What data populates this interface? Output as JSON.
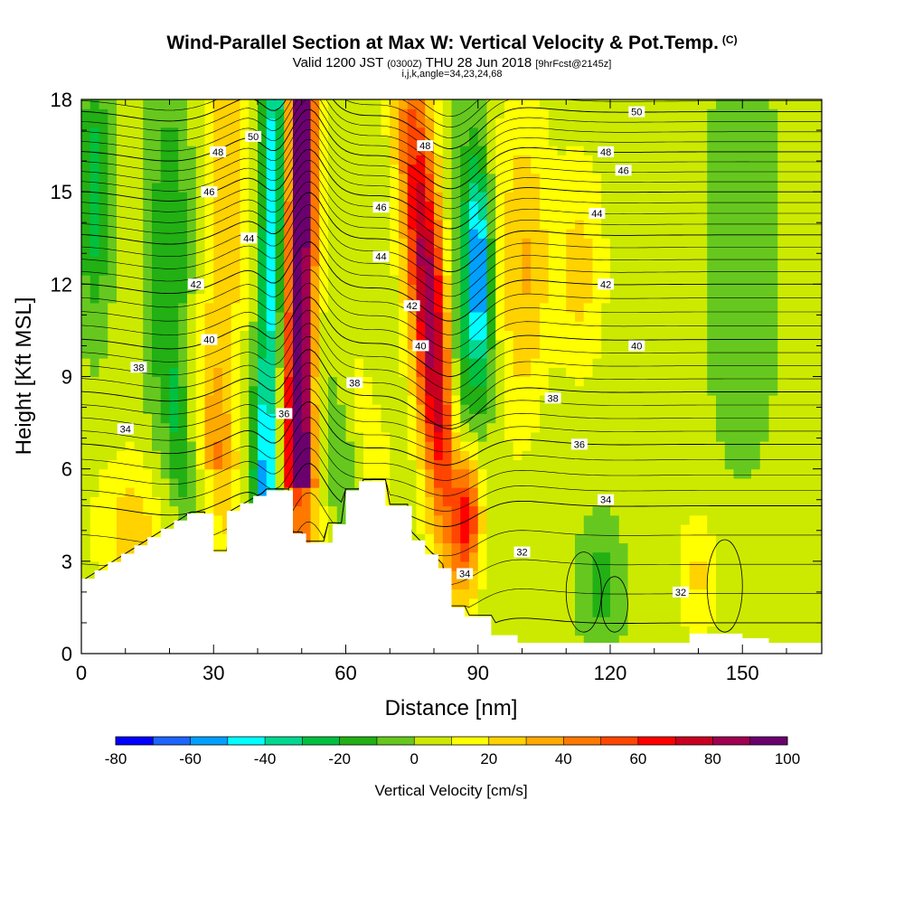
{
  "header": {
    "title": "Wind-Parallel Section at Max W: Vertical Velocity & Pot.Temp.",
    "copyright": "(C)",
    "valid_prefix": "Valid 1200 JST",
    "valid_utc": "(0300Z)",
    "valid_date": "THU 28 Jun 2018",
    "forecast": "[9hrFcst@2145z]",
    "indices": "i,j,k,angle=34,23,24,68"
  },
  "chart_data": {
    "type": "heatmap",
    "xlabel": "Distance [nm]",
    "ylabel": "Height [Kft MSL]",
    "xlim": [
      0,
      168
    ],
    "ylim": [
      0,
      18
    ],
    "x_ticks": [
      0,
      30,
      60,
      90,
      120,
      150
    ],
    "y_ticks": [
      0,
      3,
      6,
      9,
      12,
      15,
      18
    ],
    "colorbar": {
      "label": "Vertical Velocity [cm/s]",
      "levels": [
        -80,
        -70,
        -60,
        -50,
        -40,
        -30,
        -20,
        -10,
        0,
        10,
        20,
        30,
        40,
        50,
        60,
        70,
        80,
        90,
        100
      ],
      "tick_labels": [
        -80,
        -60,
        -40,
        -20,
        0,
        20,
        40,
        60,
        80,
        100
      ],
      "colors": [
        "#0000ff",
        "#1e64ff",
        "#00a0ff",
        "#00ffff",
        "#00d890",
        "#00c040",
        "#22b014",
        "#66c81e",
        "#ccea00",
        "#ffff00",
        "#ffd200",
        "#ffaa00",
        "#ff7800",
        "#ff4600",
        "#ff0000",
        "#c80020",
        "#a00050",
        "#6a006e"
      ]
    },
    "vertical_velocity_bands": [
      {
        "x_top": 49,
        "x_bottom": 50,
        "peak_cm_s": 100
      },
      {
        "x_top": 39,
        "x_bottom": 44,
        "peak_cm_s": -50
      },
      {
        "x_top": 76,
        "x_bottom": 88,
        "peak_cm_s": 80
      },
      {
        "x_top": 91,
        "x_bottom": 96,
        "peak_cm_s": -60
      },
      {
        "x_top": 101,
        "x_bottom": 108,
        "peak_cm_s": 30
      }
    ],
    "theta_contours_label": [
      32,
      34,
      36,
      38,
      40,
      42,
      44,
      46,
      48,
      50
    ],
    "theta_contour_labels": [
      {
        "text": "50",
        "x": 39,
        "y": 16.8
      },
      {
        "text": "48",
        "x": 31,
        "y": 16.3
      },
      {
        "text": "46",
        "x": 29,
        "y": 15.0
      },
      {
        "text": "44",
        "x": 38,
        "y": 13.5
      },
      {
        "text": "42",
        "x": 26,
        "y": 12.0
      },
      {
        "text": "40",
        "x": 29,
        "y": 10.2
      },
      {
        "text": "38",
        "x": 13,
        "y": 9.3
      },
      {
        "text": "34",
        "x": 10,
        "y": 7.3
      },
      {
        "text": "36",
        "x": 46,
        "y": 7.8
      },
      {
        "text": "38",
        "x": 62,
        "y": 8.8
      },
      {
        "text": "48",
        "x": 78,
        "y": 16.5
      },
      {
        "text": "46",
        "x": 68,
        "y": 14.5
      },
      {
        "text": "44",
        "x": 68,
        "y": 12.9
      },
      {
        "text": "42",
        "x": 75,
        "y": 11.3
      },
      {
        "text": "40",
        "x": 77,
        "y": 10.0
      },
      {
        "text": "50",
        "x": 126,
        "y": 17.6
      },
      {
        "text": "48",
        "x": 119,
        "y": 16.3
      },
      {
        "text": "46",
        "x": 123,
        "y": 15.7
      },
      {
        "text": "44",
        "x": 117,
        "y": 14.3
      },
      {
        "text": "42",
        "x": 119,
        "y": 12.0
      },
      {
        "text": "40",
        "x": 126,
        "y": 10.0
      },
      {
        "text": "38",
        "x": 107,
        "y": 8.3
      },
      {
        "text": "36",
        "x": 113,
        "y": 6.8
      },
      {
        "text": "34",
        "x": 119,
        "y": 5.0
      },
      {
        "text": "32",
        "x": 100,
        "y": 3.3
      },
      {
        "text": "34",
        "x": 87,
        "y": 2.6
      },
      {
        "text": "32",
        "x": 136,
        "y": 2.0
      }
    ]
  }
}
